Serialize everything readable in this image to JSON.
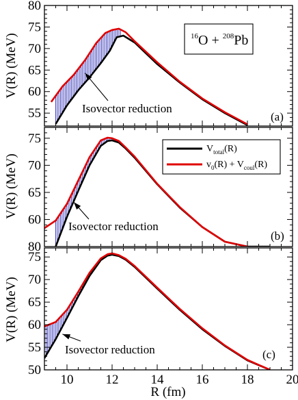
{
  "chart_data": [
    {
      "type": "line",
      "panel_label": "(a)",
      "title_box": {
        "proj_mass": "16",
        "proj": "O",
        "target_mass": "208",
        "target": "Pb"
      },
      "ylabel": "V(R) (MeV)",
      "xlim": [
        9,
        20
      ],
      "ylim": [
        52,
        80
      ],
      "yticks": [
        55,
        60,
        65,
        70,
        75,
        80
      ],
      "annotation": {
        "text": "Isovector reduction",
        "arrow_to": [
          10.8,
          64.3
        ]
      },
      "series": [
        {
          "color": "#000000",
          "x": [
            9.5,
            10.0,
            10.5,
            11.0,
            11.5,
            11.9,
            12.2,
            12.5,
            13,
            14,
            15,
            16,
            17,
            18
          ],
          "y": [
            52.5,
            56.8,
            60.3,
            63.3,
            66.6,
            69.5,
            72.6,
            73.0,
            71.4,
            66.4,
            62.1,
            58.2,
            55.0,
            52.2
          ]
        },
        {
          "color": "#e00000",
          "x": [
            9.3,
            9.8,
            10.3,
            10.8,
            11.3,
            11.7,
            12.0,
            12.3,
            12.6,
            13,
            14,
            15,
            16,
            17,
            18
          ],
          "y": [
            57.6,
            61.2,
            63.9,
            67.3,
            71.3,
            73.6,
            74.3,
            74.6,
            73.8,
            71.7,
            66.8,
            62.3,
            58.4,
            55.2,
            52.4
          ]
        }
      ]
    },
    {
      "type": "line",
      "panel_label": "(b)",
      "ylabel": "V(R) (MeV)",
      "xlim": [
        9,
        20
      ],
      "ylim": [
        55,
        77
      ],
      "yticks": [
        60,
        65,
        70,
        75
      ],
      "tick_labels_extra": [
        {
          "value": 55,
          "label": "80"
        }
      ],
      "annotation": {
        "text": "Isovector reduction",
        "arrow_to": [
          10.3,
          63.2
        ]
      },
      "legend": {
        "placement": "top-right",
        "entries": [
          {
            "color": "#000000",
            "label_main": "V",
            "label_sub": "total",
            "label_tail": "(R)"
          },
          {
            "color": "#e00000",
            "label_main": "v",
            "label_sub": "0",
            "label_mid": "(R) + V",
            "label_sub2": "coul",
            "label_tail": "(R)"
          }
        ]
      },
      "series": [
        {
          "color": "#000000",
          "x": [
            9.5,
            10.0,
            10.5,
            11.0,
            11.5,
            11.8,
            12.0,
            12.3,
            12.6,
            13,
            14,
            15,
            16,
            17,
            18,
            19
          ],
          "y": [
            55.0,
            60.5,
            65.3,
            70.0,
            73.6,
            74.5,
            74.6,
            74.2,
            73.1,
            71.4,
            66.5,
            62.2,
            58.6,
            55.9,
            55.0,
            55.0
          ]
        },
        {
          "color": "#e00000",
          "x": [
            9.0,
            9.5,
            10.0,
            10.5,
            11.0,
            11.5,
            11.8,
            12.0,
            12.3,
            12.6,
            13,
            14,
            15,
            16,
            17,
            18
          ],
          "y": [
            58.4,
            59.8,
            62.9,
            67.2,
            71.5,
            74.6,
            75.1,
            75.0,
            74.5,
            73.3,
            71.6,
            66.6,
            62.3,
            58.6,
            55.9,
            55.0
          ]
        }
      ]
    },
    {
      "type": "line",
      "panel_label": "(c)",
      "xlabel": "R (fm)",
      "ylabel": "V(R) (MeV)",
      "xlim": [
        9,
        20
      ],
      "ylim": [
        50,
        77
      ],
      "xticks": [
        10,
        12,
        14,
        16,
        18,
        20
      ],
      "yticks": [
        50,
        55,
        60,
        65,
        70,
        75
      ],
      "annotation": {
        "text": "Isovector reduction",
        "arrow_to": [
          9.8,
          57.9
        ]
      },
      "series": [
        {
          "color": "#000000",
          "x": [
            9.0,
            9.5,
            10.0,
            10.5,
            11.0,
            11.5,
            11.8,
            12.0,
            12.3,
            12.6,
            13,
            14,
            15,
            16,
            17,
            18,
            19
          ],
          "y": [
            52.6,
            56.8,
            61.5,
            66.3,
            70.8,
            74.3,
            75.3,
            75.5,
            75.2,
            74.4,
            72.8,
            68.0,
            63.3,
            59.0,
            55.3,
            52.1,
            50.0
          ]
        },
        {
          "color": "#e00000",
          "x": [
            9.0,
            9.5,
            10.0,
            10.5,
            11.0,
            11.5,
            11.8,
            12.0,
            12.3,
            12.6,
            13,
            14,
            15,
            16,
            17,
            18,
            19
          ],
          "y": [
            59.6,
            60.6,
            63.3,
            67.3,
            71.5,
            74.7,
            75.6,
            75.8,
            75.4,
            74.6,
            73.0,
            68.2,
            63.5,
            59.2,
            55.4,
            52.2,
            50.0
          ]
        }
      ]
    }
  ]
}
